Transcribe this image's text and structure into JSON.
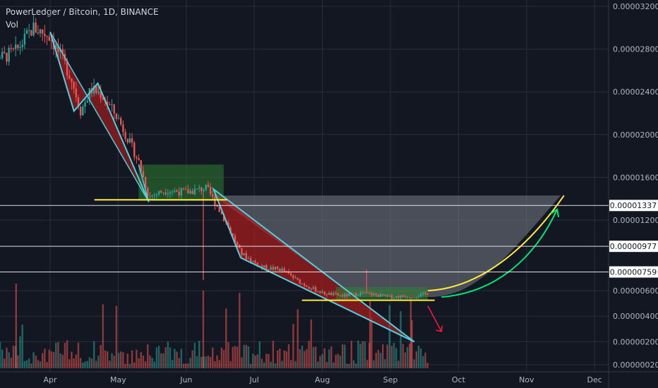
{
  "header": {
    "title": "PowerLedger / Bitcoin, 1D, BINANCE",
    "volume_label": "Vol"
  },
  "colors": {
    "background": "#131722",
    "grid": "#2a2e39",
    "candle_up": "#26a69a",
    "candle_down": "#ef5350",
    "wedge_fill": "#b71c1c",
    "wedge_outline": "#4dd0e1",
    "range_fill": "#2e7d32",
    "support_line": "#ffeb3b",
    "cup_fill": "#787b86",
    "cup_curve": "#ffeb3b",
    "arrow_up": "#00e676",
    "arrow_down": "#ff1744",
    "level_line": "#e0e0e0"
  },
  "chart_data": {
    "type": "candlestick",
    "title": "PowerLedger / Bitcoin, 1D, BINANCE",
    "x_tick_labels": [
      "Apr",
      "May",
      "Jun",
      "Jul",
      "Aug",
      "Sep",
      "Oct",
      "Nov",
      "Dec"
    ],
    "y_tick_values": [
      3.2e-05,
      2.8e-05,
      2.4e-05,
      2e-05,
      1.6e-05,
      1.2e-05,
      6e-06,
      4e-06,
      2e-06,
      2e-07
    ],
    "y_tick_labels": [
      "0.00003200",
      "0.00002800",
      "0.00002400",
      "0.00002000",
      "0.00001600",
      "0.00001200",
      "0.00000600",
      "0.00000400",
      "0.00000200",
      "0.00000020"
    ],
    "highlighted_levels": [
      {
        "value": 1.337e-05,
        "label": "0.00001337"
      },
      {
        "value": 9.77e-06,
        "label": "0.00000977"
      },
      {
        "value": 7.59e-06,
        "label": "0.00000759"
      }
    ],
    "price_path": [
      {
        "month": 3.0,
        "price": 2.85e-05
      },
      {
        "month": 3.3,
        "price": 2.72e-05
      },
      {
        "month": 3.5,
        "price": 2.78e-05
      },
      {
        "month": 3.75,
        "price": 3e-05
      },
      {
        "month": 4.0,
        "price": 2.92e-05
      },
      {
        "month": 4.3,
        "price": 2.55e-05
      },
      {
        "month": 4.45,
        "price": 2.22e-05
      },
      {
        "month": 4.6,
        "price": 2.42e-05
      },
      {
        "month": 4.75,
        "price": 2.38e-05
      },
      {
        "month": 5.0,
        "price": 2.15e-05
      },
      {
        "month": 5.3,
        "price": 1.75e-05
      },
      {
        "month": 5.45,
        "price": 1.42e-05
      },
      {
        "month": 5.7,
        "price": 1.48e-05
      },
      {
        "month": 6.0,
        "price": 1.46e-05
      },
      {
        "month": 6.3,
        "price": 1.5e-05
      },
      {
        "month": 6.5,
        "price": 1.28e-05
      },
      {
        "month": 6.8,
        "price": 9.2e-06
      },
      {
        "month": 7.1,
        "price": 8e-06
      },
      {
        "month": 7.4,
        "price": 7.8e-06
      },
      {
        "month": 7.7,
        "price": 6.6e-06
      },
      {
        "month": 8.0,
        "price": 5.8e-06
      },
      {
        "month": 8.3,
        "price": 5.6e-06
      },
      {
        "month": 8.6,
        "price": 5.8e-06
      },
      {
        "month": 9.0,
        "price": 5.5e-06
      },
      {
        "month": 9.4,
        "price": 5.6e-06
      },
      {
        "month": 9.55,
        "price": 5.8e-06
      }
    ],
    "volume_range": [
      0,
      100
    ]
  }
}
